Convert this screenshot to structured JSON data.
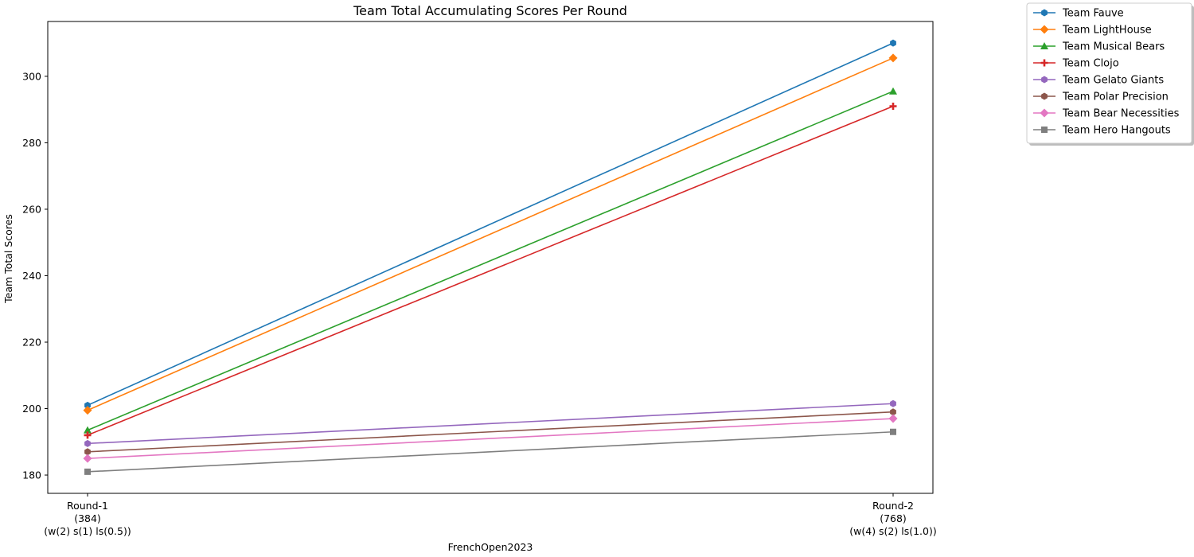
{
  "chart_data": {
    "type": "line",
    "title": "Team Total Accumulating Scores Per Round",
    "xlabel": "FrenchOpen2023",
    "ylabel": "Team Total Scores",
    "categories": [
      [
        "Round-1",
        "(384)",
        "(w(2) s(1) ls(0.5))"
      ],
      [
        "Round-2",
        "(768)",
        "(w(4) s(2) ls(1.0))"
      ]
    ],
    "ylim": [
      174.5,
      316.5
    ],
    "yticks": [
      180,
      200,
      220,
      240,
      260,
      280,
      300
    ],
    "grid": false,
    "legend_placement": "outside-top-right",
    "series": [
      {
        "name": "Team Fauve",
        "values": [
          201,
          310
        ],
        "color": "#1f77b4",
        "marker": "hexagon"
      },
      {
        "name": "Team LightHouse",
        "values": [
          199.5,
          305.5
        ],
        "color": "#ff7f0e",
        "marker": "diamond"
      },
      {
        "name": "Team Musical Bears",
        "values": [
          193.5,
          295.5
        ],
        "color": "#2ca02c",
        "marker": "triangle"
      },
      {
        "name": "Team Clojo",
        "values": [
          192,
          291
        ],
        "color": "#d62728",
        "marker": "plus"
      },
      {
        "name": "Team Gelato Giants",
        "values": [
          189.5,
          201.5
        ],
        "color": "#9467bd",
        "marker": "hexagon"
      },
      {
        "name": "Team Polar Precision",
        "values": [
          187,
          199
        ],
        "color": "#8c564b",
        "marker": "hexagon"
      },
      {
        "name": "Team Bear Necessities",
        "values": [
          185,
          197
        ],
        "color": "#e377c2",
        "marker": "diamond"
      },
      {
        "name": "Team Hero Hangouts",
        "values": [
          181,
          193
        ],
        "color": "#7f7f7f",
        "marker": "square"
      }
    ]
  }
}
